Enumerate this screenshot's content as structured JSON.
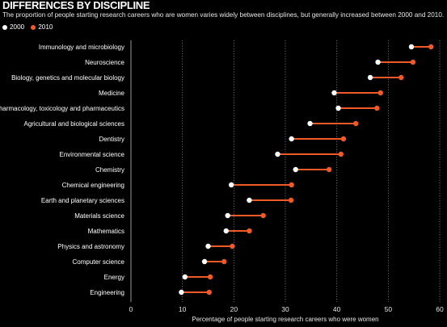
{
  "title": "DIFFERENCES BY DISCIPLINE",
  "subtitle": "The proportion of people starting research careers who are women varies widely between disciplines, but generally increased between 2000 and 2010.",
  "legend": [
    {
      "label": "2000",
      "color": "#ffffff"
    },
    {
      "label": "2010",
      "color": "#f05a28"
    }
  ],
  "chart_data": {
    "type": "dot-plot",
    "title": "DIFFERENCES BY DISCIPLINE",
    "xlabel": "Percentage of people starting research careers who were women",
    "ylabel": "",
    "xlim": [
      0,
      60
    ],
    "xticks": [
      0,
      10,
      20,
      30,
      40,
      50,
      60
    ],
    "grid": true,
    "legend_position": "top-left",
    "categories": [
      "Immunology and microbiology",
      "Neuroscience",
      "Biology, genetics and molecular biology",
      "Medicine",
      "Pharmacology, toxicology and pharmaceutics",
      "Agricultural and biological sciences",
      "Dentistry",
      "Environmental science",
      "Chemistry",
      "Chemical engineering",
      "Earth and planetary sciences",
      "Materials science",
      "Mathematics",
      "Physics and astronomy",
      "Computer science",
      "Energy",
      "Engineering"
    ],
    "series": [
      {
        "name": "2000",
        "color": "#ffffff",
        "values": [
          54.5,
          48,
          46.5,
          39.5,
          40.3,
          34.8,
          31.2,
          28.5,
          32,
          19.5,
          23,
          18.8,
          18.5,
          15,
          14.3,
          10.5,
          9.8
        ]
      },
      {
        "name": "2010",
        "color": "#f05a28",
        "values": [
          58.3,
          54.8,
          52.5,
          48.5,
          47.8,
          43.7,
          41.3,
          40.8,
          38.5,
          31.2,
          31.1,
          25.7,
          23,
          19.7,
          18.1,
          15.4,
          15.2
        ]
      }
    ]
  }
}
